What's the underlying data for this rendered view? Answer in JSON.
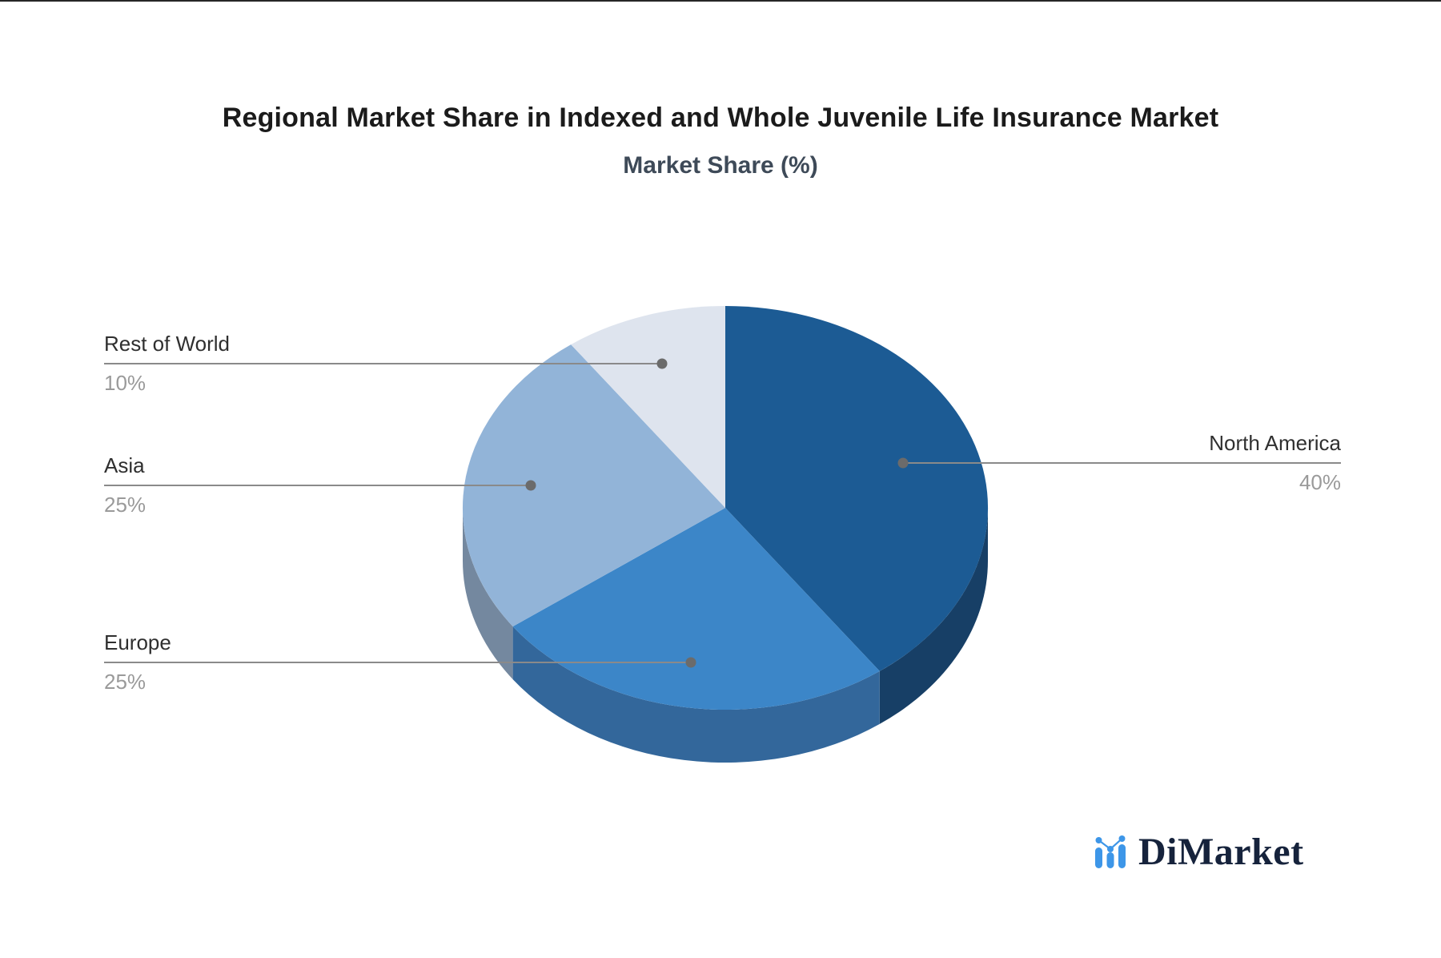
{
  "page": {
    "background": "#ffffff",
    "top_border_color": "#262626"
  },
  "header": {
    "title": "Regional Market Share in Indexed and Whole Juvenile Life Insurance Market",
    "subtitle": "Market Share (%)"
  },
  "chart_data": {
    "type": "pie",
    "style": "3d-pie-with-depth",
    "title": "Regional Market Share in Indexed and Whole Juvenile Life Insurance Market",
    "subtitle": "Market Share (%)",
    "unit": "percent",
    "start_angle": "12-o'clock, clockwise",
    "categories": [
      "North America",
      "Europe",
      "Asia",
      "Rest of World"
    ],
    "values": [
      40,
      25,
      25,
      10
    ],
    "slices": [
      {
        "label": "North America",
        "value": 40,
        "pct_label": "40%",
        "color": "#1C5B94",
        "side_color": "#173F66",
        "callout_side": "right"
      },
      {
        "label": "Europe",
        "value": 25,
        "pct_label": "25%",
        "color": "#3C86C8",
        "side_color": "#33679B",
        "callout_side": "left"
      },
      {
        "label": "Asia",
        "value": 25,
        "pct_label": "25%",
        "color": "#92B4D8",
        "side_color": "#74889F",
        "callout_side": "left"
      },
      {
        "label": "Rest of World",
        "value": 10,
        "pct_label": "10%",
        "color": "#DEE4EE",
        "side_color": "#B8C2D4",
        "callout_side": "left"
      }
    ],
    "legend_position": "callout-labels-with-leader-lines",
    "grid": false,
    "label_color": "#2F2F2F",
    "pct_label_color": "#9A9A9A",
    "leader_line_color": "#8A8A8A",
    "leader_dot_color": "#6B6B6B"
  },
  "branding": {
    "logo_text": "DiMarket",
    "logo_text_color": "#16233C",
    "logo_icon": "bar-chart-with-trend-dots",
    "logo_accent_color": "#3D96E8"
  }
}
